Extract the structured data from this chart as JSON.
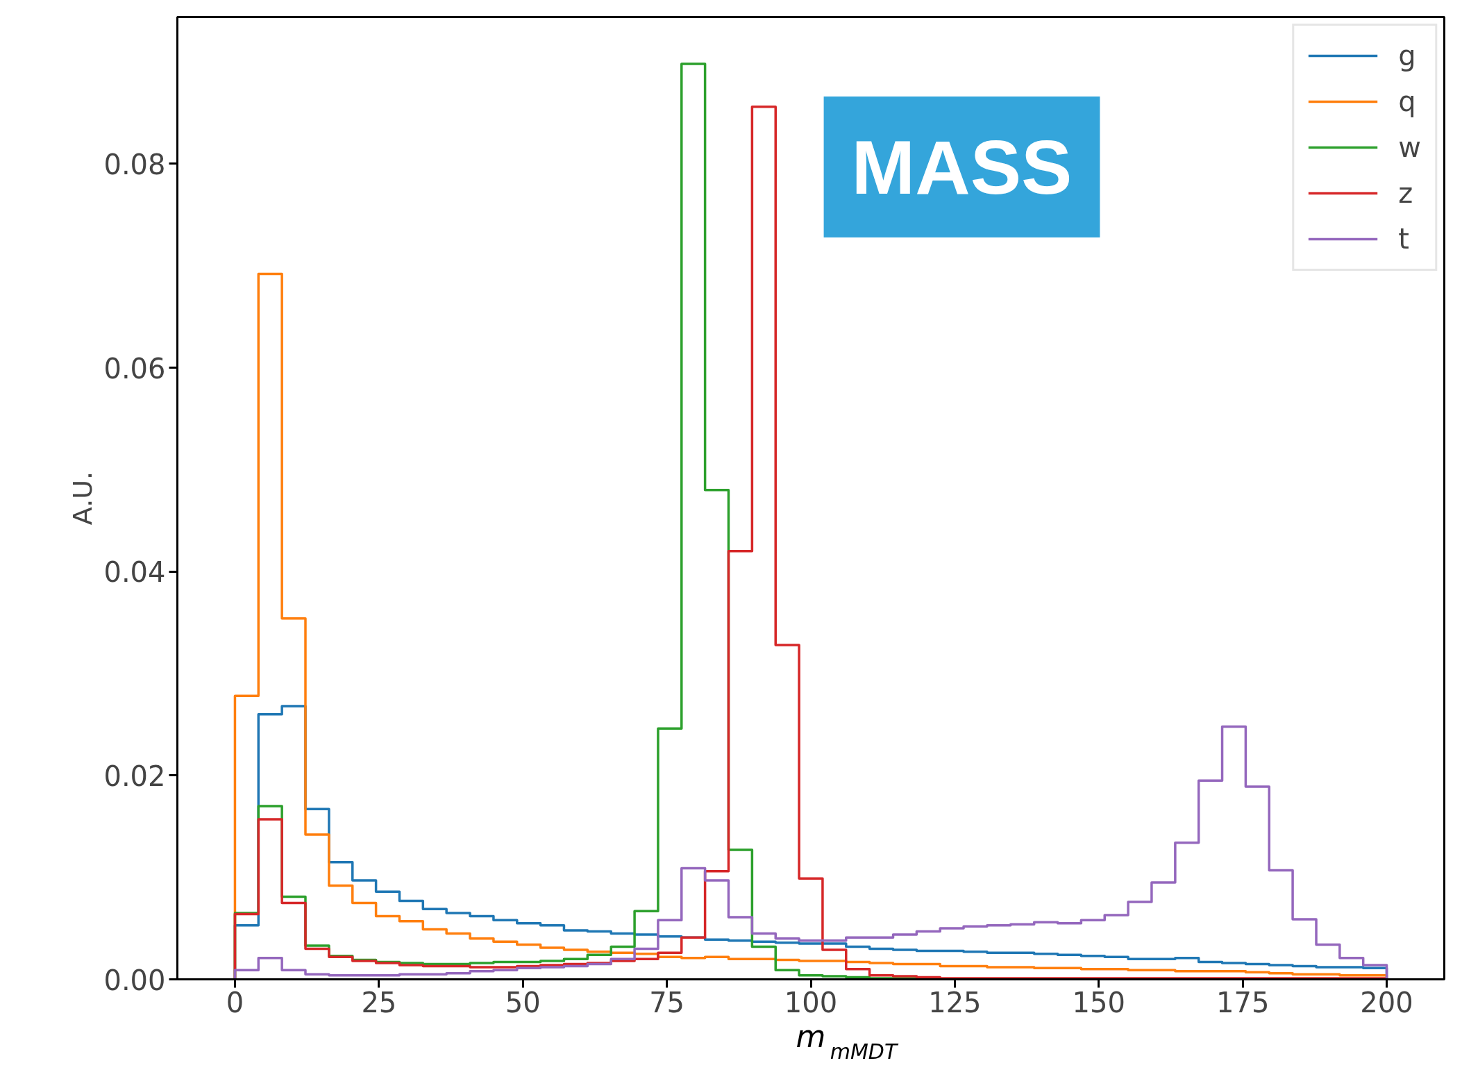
{
  "chart_data": {
    "type": "histogram",
    "xlabel": "m$_{mMDT}$",
    "ylabel": "A.U.",
    "annotations": [
      "MASS"
    ],
    "bins": [
      0.0,
      4.08,
      8.16,
      12.24,
      16.33,
      20.41,
      24.49,
      28.57,
      32.65,
      36.73,
      40.82,
      44.9,
      48.98,
      53.06,
      57.14,
      61.22,
      65.31,
      69.39,
      73.47,
      77.55,
      81.63,
      85.71,
      89.8,
      93.88,
      97.96,
      102.04,
      106.12,
      110.2,
      114.29,
      118.37,
      122.45,
      126.53,
      130.61,
      134.69,
      138.78,
      142.86,
      146.94,
      151.02,
      155.1,
      159.18,
      163.27,
      167.35,
      171.43,
      175.51,
      179.59,
      183.67,
      187.76,
      191.84,
      195.92,
      200.0
    ],
    "series": [
      {
        "name": "g",
        "color": "#1f77b4",
        "values": [
          0.0053,
          0.026,
          0.0268,
          0.0167,
          0.0115,
          0.0097,
          0.0086,
          0.0077,
          0.0069,
          0.0065,
          0.0062,
          0.0058,
          0.0055,
          0.0053,
          0.0048,
          0.0047,
          0.0045,
          0.0044,
          0.0042,
          0.0041,
          0.0039,
          0.0038,
          0.0037,
          0.0036,
          0.0035,
          0.0035,
          0.0032,
          0.003,
          0.0029,
          0.0028,
          0.0028,
          0.0027,
          0.0026,
          0.0026,
          0.0025,
          0.0024,
          0.0023,
          0.0022,
          0.002,
          0.002,
          0.0021,
          0.0017,
          0.0016,
          0.0015,
          0.0014,
          0.0013,
          0.0012,
          0.0012,
          0.0011
        ]
      },
      {
        "name": "q",
        "color": "#ff7f0e",
        "values": [
          0.0278,
          0.0692,
          0.0354,
          0.0142,
          0.0092,
          0.0075,
          0.0062,
          0.0057,
          0.0049,
          0.0045,
          0.004,
          0.0037,
          0.0034,
          0.0031,
          0.0029,
          0.0027,
          0.0026,
          0.0025,
          0.0022,
          0.0021,
          0.0022,
          0.002,
          0.002,
          0.0019,
          0.0018,
          0.0018,
          0.0017,
          0.0016,
          0.0015,
          0.0015,
          0.0013,
          0.0013,
          0.0012,
          0.0012,
          0.0011,
          0.0011,
          0.001,
          0.001,
          0.0009,
          0.0009,
          0.0008,
          0.0008,
          0.0008,
          0.0007,
          0.0006,
          0.0005,
          0.0005,
          0.0004,
          0.0004
        ]
      },
      {
        "name": "w",
        "color": "#2ca02c",
        "values": [
          0.0065,
          0.017,
          0.0081,
          0.0033,
          0.0023,
          0.0019,
          0.0017,
          0.0016,
          0.0015,
          0.0015,
          0.0016,
          0.0017,
          0.0017,
          0.0018,
          0.002,
          0.0024,
          0.0032,
          0.0067,
          0.0246,
          0.0898,
          0.048,
          0.0127,
          0.0032,
          0.0009,
          0.0004,
          0.0003,
          0.0002,
          0.0001,
          0.0001,
          0.0,
          0.0,
          0.0,
          0.0,
          0.0,
          0.0,
          0.0,
          0.0,
          0.0,
          0.0,
          0.0,
          0.0,
          0.0,
          0.0,
          0.0,
          0.0,
          0.0,
          0.0,
          0.0,
          0.0
        ]
      },
      {
        "name": "z",
        "color": "#d62728",
        "values": [
          0.0064,
          0.0157,
          0.0075,
          0.003,
          0.0022,
          0.0018,
          0.0016,
          0.0014,
          0.0013,
          0.0013,
          0.0012,
          0.0012,
          0.0013,
          0.0014,
          0.0015,
          0.0016,
          0.0018,
          0.002,
          0.0026,
          0.0041,
          0.0106,
          0.042,
          0.0856,
          0.0328,
          0.0099,
          0.0029,
          0.001,
          0.0004,
          0.0003,
          0.0002,
          0.0001,
          0.0001,
          0.0001,
          0.0001,
          0.0001,
          0.0001,
          0.0001,
          0.0001,
          0.0001,
          0.0001,
          0.0001,
          0.0001,
          0.0001,
          0.0001,
          0.0001,
          0.0001,
          0.0001,
          0.0001,
          0.0001
        ]
      },
      {
        "name": "t",
        "color": "#9467bd",
        "values": [
          0.0009,
          0.0021,
          0.0009,
          0.0005,
          0.0004,
          0.0004,
          0.0004,
          0.0005,
          0.0005,
          0.0006,
          0.0008,
          0.0009,
          0.0011,
          0.0012,
          0.0013,
          0.0015,
          0.002,
          0.003,
          0.0058,
          0.0109,
          0.0097,
          0.0061,
          0.0045,
          0.004,
          0.0038,
          0.0038,
          0.0041,
          0.0041,
          0.0044,
          0.0047,
          0.005,
          0.0052,
          0.0053,
          0.0054,
          0.0056,
          0.0055,
          0.0058,
          0.0063,
          0.0076,
          0.0095,
          0.0134,
          0.0195,
          0.0248,
          0.0189,
          0.0107,
          0.0059,
          0.0034,
          0.0021,
          0.0014
        ]
      }
    ],
    "xlim": [
      -10,
      210
    ],
    "ylim": [
      0,
      0.0944
    ],
    "xticks": [
      0,
      25,
      50,
      75,
      100,
      125,
      150,
      175,
      200
    ],
    "yticks": [
      {
        "value": 0,
        "label": "0.00"
      },
      {
        "value": 0.02,
        "label": "0.02"
      },
      {
        "value": 0.04,
        "label": "0.04"
      },
      {
        "value": 0.06,
        "label": "0.06"
      },
      {
        "value": 0.08,
        "label": "0.08"
      }
    ],
    "legend": "top right",
    "grid": false
  }
}
